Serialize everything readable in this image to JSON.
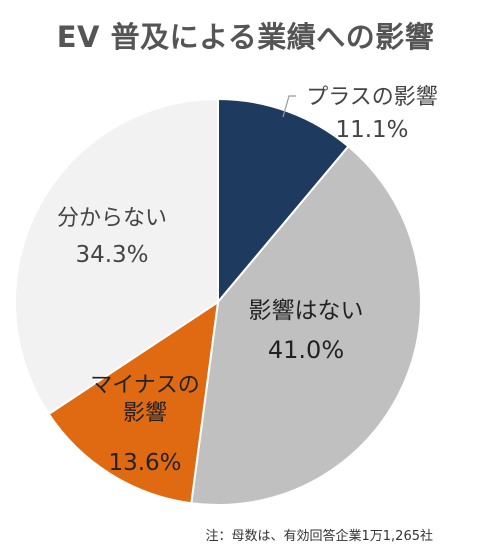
{
  "chart_data": {
    "type": "pie",
    "title": "EV 普及による業績への影響",
    "slices": [
      {
        "label": "プラスの影響",
        "percent_label": "11.1%",
        "value": 11.1,
        "color": "#1f3a5f"
      },
      {
        "label": "影響はない",
        "percent_label": "41.0%",
        "value": 41.0,
        "color": "#c0c0c0"
      },
      {
        "label": "マイナスの影響",
        "percent_label": "13.6%",
        "value": 13.6,
        "color": "#e06a12"
      },
      {
        "label": "分からない",
        "percent_label": "34.3%",
        "value": 34.3,
        "color": "#f2f2f2"
      }
    ],
    "note": "注：母数は、有効回答企業1万1,265社"
  }
}
